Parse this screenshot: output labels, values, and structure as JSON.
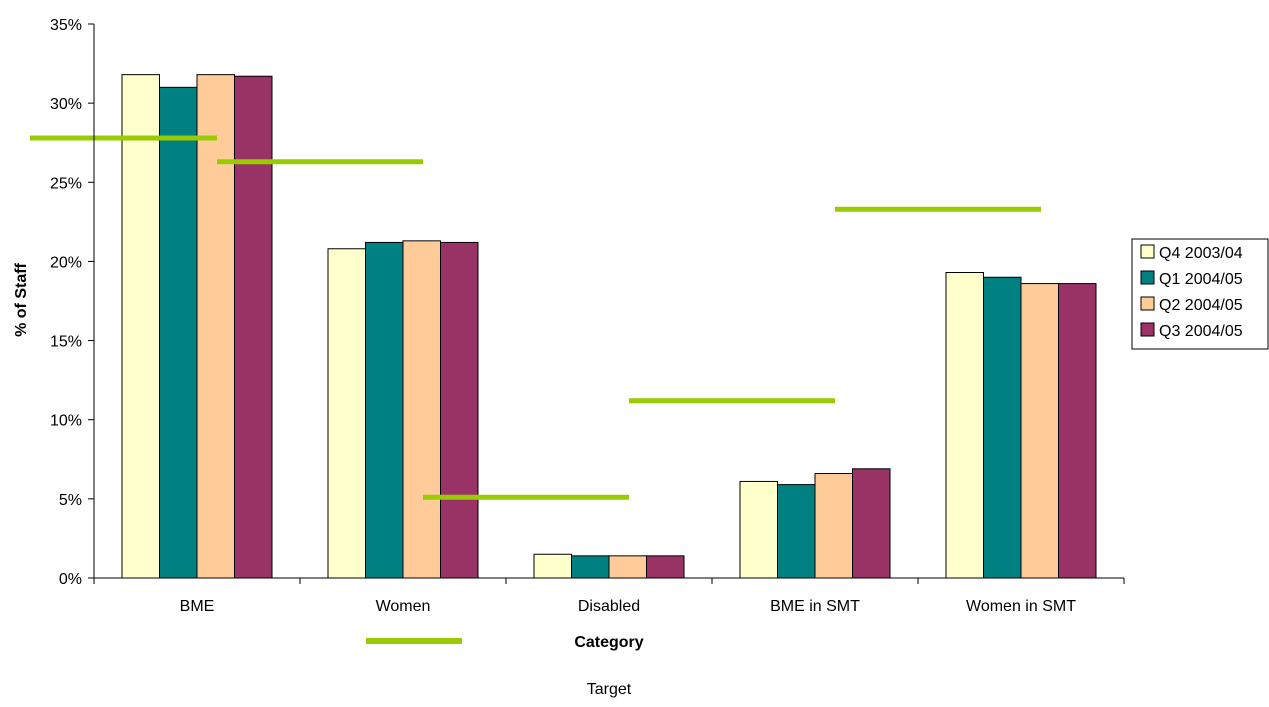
{
  "chart_data": {
    "type": "bar",
    "xlabel": "Category",
    "ylabel": "% of Staff",
    "categories": [
      "BME",
      "Women",
      "Disabled",
      "BME in SMT",
      "Women in SMT"
    ],
    "ylim": [
      0,
      35
    ],
    "y_ticks": [
      "0%",
      "5%",
      "10%",
      "15%",
      "20%",
      "25%",
      "30%",
      "35%"
    ],
    "y_tick_values": [
      0,
      5,
      10,
      15,
      20,
      25,
      30,
      35
    ],
    "grid": false,
    "legend_position": "right",
    "series": [
      {
        "name": "Q4 2003/04",
        "color": "#FFFFCC",
        "values": [
          31.8,
          20.8,
          1.5,
          6.1,
          19.3
        ]
      },
      {
        "name": "Q1 2004/05",
        "color": "#008080",
        "values": [
          31.0,
          21.2,
          1.4,
          5.9,
          19.0
        ]
      },
      {
        "name": "Q2 2004/05",
        "color": "#FFCC99",
        "values": [
          31.8,
          21.3,
          1.4,
          6.6,
          18.6
        ]
      },
      {
        "name": "Q3 2004/05",
        "color": "#993366",
        "values": [
          31.7,
          21.2,
          1.4,
          6.9,
          18.6
        ]
      }
    ],
    "target": {
      "name": "Target",
      "color": "#99CC00",
      "values": [
        27.8,
        26.3,
        5.1,
        11.2,
        23.3
      ]
    }
  }
}
